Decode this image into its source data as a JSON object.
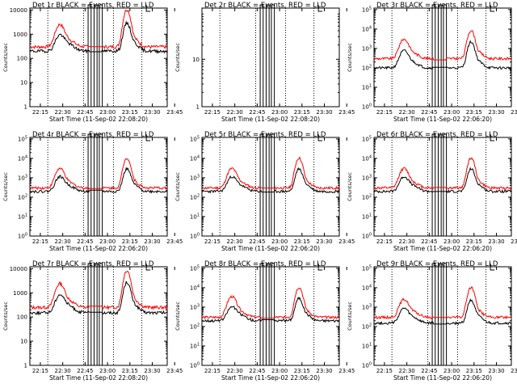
{
  "charts": [
    {
      "title": "Det 1r BLACK = Events, RED = LLD",
      "ylabel": "Counts/sec",
      "xlabel": "Start Time (11-Sep-02 22:08:20)",
      "ytick_style": "plain",
      "yticks": [
        "1",
        "10",
        "100",
        "1000",
        "10000"
      ],
      "xticks": [
        "22:15",
        "22:30",
        "22:45",
        "23:00",
        "23:15",
        "23:30",
        "23:45"
      ]
    },
    {
      "title": "Det 2r BLACK = Events, RED = LLD",
      "ylabel": "Counts/sec",
      "xlabel": "Start Time (11-Sep-02 22:08:20)",
      "ytick_style": "plain",
      "yticks": [
        "1",
        "10"
      ],
      "xticks": [
        "22:15",
        "22:30",
        "22:45",
        "23:00",
        "23:15",
        "23:30",
        "23:45"
      ]
    },
    {
      "title": "Det 3r BLACK = Events, RED = LLD",
      "ylabel": "Counts/sec",
      "xlabel": "Start Time (11-Sep-02 22:06:20)",
      "ytick_style": "exp",
      "yticks": [
        "10",
        "10",
        "10",
        "10",
        "10",
        "10"
      ],
      "yticks_exp": [
        "0",
        "1",
        "2",
        "3",
        "4",
        "5"
      ],
      "xticks": [
        "22:15",
        "22:30",
        "22:45",
        "23:00",
        "23:15",
        "23:30",
        "23:45"
      ]
    },
    {
      "title": "Det 4r BLACK = Events, RED = LLD",
      "ylabel": "Counts/sec",
      "xlabel": "Start Time (11-Sep-02 22:06:20)",
      "ytick_style": "exp",
      "yticks": [
        "10",
        "10",
        "10",
        "10",
        "10",
        "10"
      ],
      "yticks_exp": [
        "0",
        "1",
        "2",
        "3",
        "4",
        "5"
      ],
      "xticks": [
        "22:15",
        "22:30",
        "22:45",
        "23:00",
        "23:15",
        "23:30",
        "23:45"
      ]
    },
    {
      "title": "Det 5r BLACK = Events, RED = LLD",
      "ylabel": "Counts/sec",
      "xlabel": "Start Time (11-Sep-02 22:06:20)",
      "ytick_style": "exp",
      "yticks": [
        "10",
        "10",
        "10",
        "10",
        "10",
        "10"
      ],
      "yticks_exp": [
        "0",
        "1",
        "2",
        "3",
        "4",
        "5"
      ],
      "xticks": [
        "22:15",
        "22:30",
        "22:45",
        "23:00",
        "23:15",
        "23:30",
        "23:45"
      ]
    },
    {
      "title": "Det 6r BLACK = Events, RED = LLD",
      "ylabel": "Counts/sec",
      "xlabel": "Start Time (11-Sep-02 22:06:20)",
      "ytick_style": "exp",
      "yticks": [
        "10",
        "10",
        "10",
        "10",
        "10",
        "10"
      ],
      "yticks_exp": [
        "0",
        "1",
        "2",
        "3",
        "4",
        "5"
      ],
      "xticks": [
        "22:15",
        "22:30",
        "22:45",
        "23:00",
        "23:15",
        "23:30",
        "23:45"
      ]
    },
    {
      "title": "Det 7r BLACK = Events, RED = LLD",
      "ylabel": "Counts/sec",
      "xlabel": "Start Time (11-Sep-02 22:08:20)",
      "ytick_style": "plain",
      "yticks": [
        "1",
        "10",
        "100",
        "1000",
        "10000"
      ],
      "xticks": [
        "22:15",
        "22:30",
        "22:45",
        "23:00",
        "23:15",
        "23:30",
        "23:45"
      ]
    },
    {
      "title": "Det 8r BLACK = Events, RED = LLD",
      "ylabel": "Counts/sec",
      "xlabel": "Start Time (11-Sep-02 22:06:20)",
      "ytick_style": "exp",
      "yticks": [
        "10",
        "10",
        "10",
        "10",
        "10",
        "10"
      ],
      "yticks_exp": [
        "0",
        "1",
        "2",
        "3",
        "4",
        "5"
      ],
      "xticks": [
        "22:15",
        "22:30",
        "22:45",
        "23:00",
        "23:15",
        "23:30",
        "23:45"
      ]
    },
    {
      "title": "Det 9r BLACK = Events, RED = LLD",
      "ylabel": "Counts/sec",
      "xlabel": "Start Time (11-Sep-02 22:06:20)",
      "ytick_style": "exp",
      "yticks": [
        "10",
        "10",
        "10",
        "10",
        "10",
        "10"
      ],
      "yticks_exp": [
        "0",
        "1",
        "2",
        "3",
        "4",
        "5"
      ],
      "xticks": [
        "22:15",
        "22:30",
        "22:45",
        "23:00",
        "23:15",
        "23:30",
        "23:45"
      ]
    }
  ],
  "chart_data": [
    {
      "type": "line",
      "det": "1r",
      "ylim": [
        1,
        12000
      ],
      "yscale": "log",
      "has_data": true,
      "peak_red": [
        2000,
        10000
      ],
      "peak_black": [
        600,
        2500
      ],
      "base_red": 300,
      "base_black": 200
    },
    {
      "type": "line",
      "det": "2r",
      "ylim": [
        1,
        120
      ],
      "yscale": "log",
      "has_data": false
    },
    {
      "type": "line",
      "det": "3r",
      "ylim": [
        1,
        120000
      ],
      "yscale": "log",
      "has_data": true,
      "peak_red": [
        2500,
        8000
      ],
      "peak_black": [
        600,
        2000
      ],
      "base_red": 300,
      "base_black": 100
    },
    {
      "type": "line",
      "det": "4r",
      "ylim": [
        1,
        120000
      ],
      "yscale": "log",
      "has_data": true,
      "peak_red": [
        2500,
        10000
      ],
      "peak_black": [
        800,
        2500
      ],
      "base_red": 300,
      "base_black": 200
    },
    {
      "type": "line",
      "det": "5r",
      "ylim": [
        1,
        120000
      ],
      "yscale": "log",
      "has_data": true,
      "peak_red": [
        2500,
        10000
      ],
      "peak_black": [
        800,
        2500
      ],
      "base_red": 300,
      "base_black": 200
    },
    {
      "type": "line",
      "det": "6r",
      "ylim": [
        1,
        120000
      ],
      "yscale": "log",
      "has_data": true,
      "peak_red": [
        2500,
        10000
      ],
      "peak_black": [
        800,
        2500
      ],
      "base_red": 300,
      "base_black": 200
    },
    {
      "type": "line",
      "det": "7r",
      "ylim": [
        1,
        12000
      ],
      "yscale": "log",
      "has_data": true,
      "peak_red": [
        2000,
        8000
      ],
      "peak_black": [
        600,
        2500
      ],
      "base_red": 250,
      "base_black": 150
    },
    {
      "type": "line",
      "det": "8r",
      "ylim": [
        1,
        120000
      ],
      "yscale": "log",
      "has_data": true,
      "peak_red": [
        3000,
        10000
      ],
      "peak_black": [
        700,
        2500
      ],
      "base_red": 300,
      "base_black": 200
    },
    {
      "type": "line",
      "det": "9r",
      "ylim": [
        1,
        120000
      ],
      "yscale": "log",
      "has_data": true,
      "peak_red": [
        2000,
        10000
      ],
      "peak_black": [
        600,
        2000
      ],
      "base_red": 300,
      "base_black": 150
    }
  ],
  "colors": {
    "events": "#000000",
    "lld": "#ff0000",
    "axes": "#000000",
    "background": "#ffffff"
  }
}
